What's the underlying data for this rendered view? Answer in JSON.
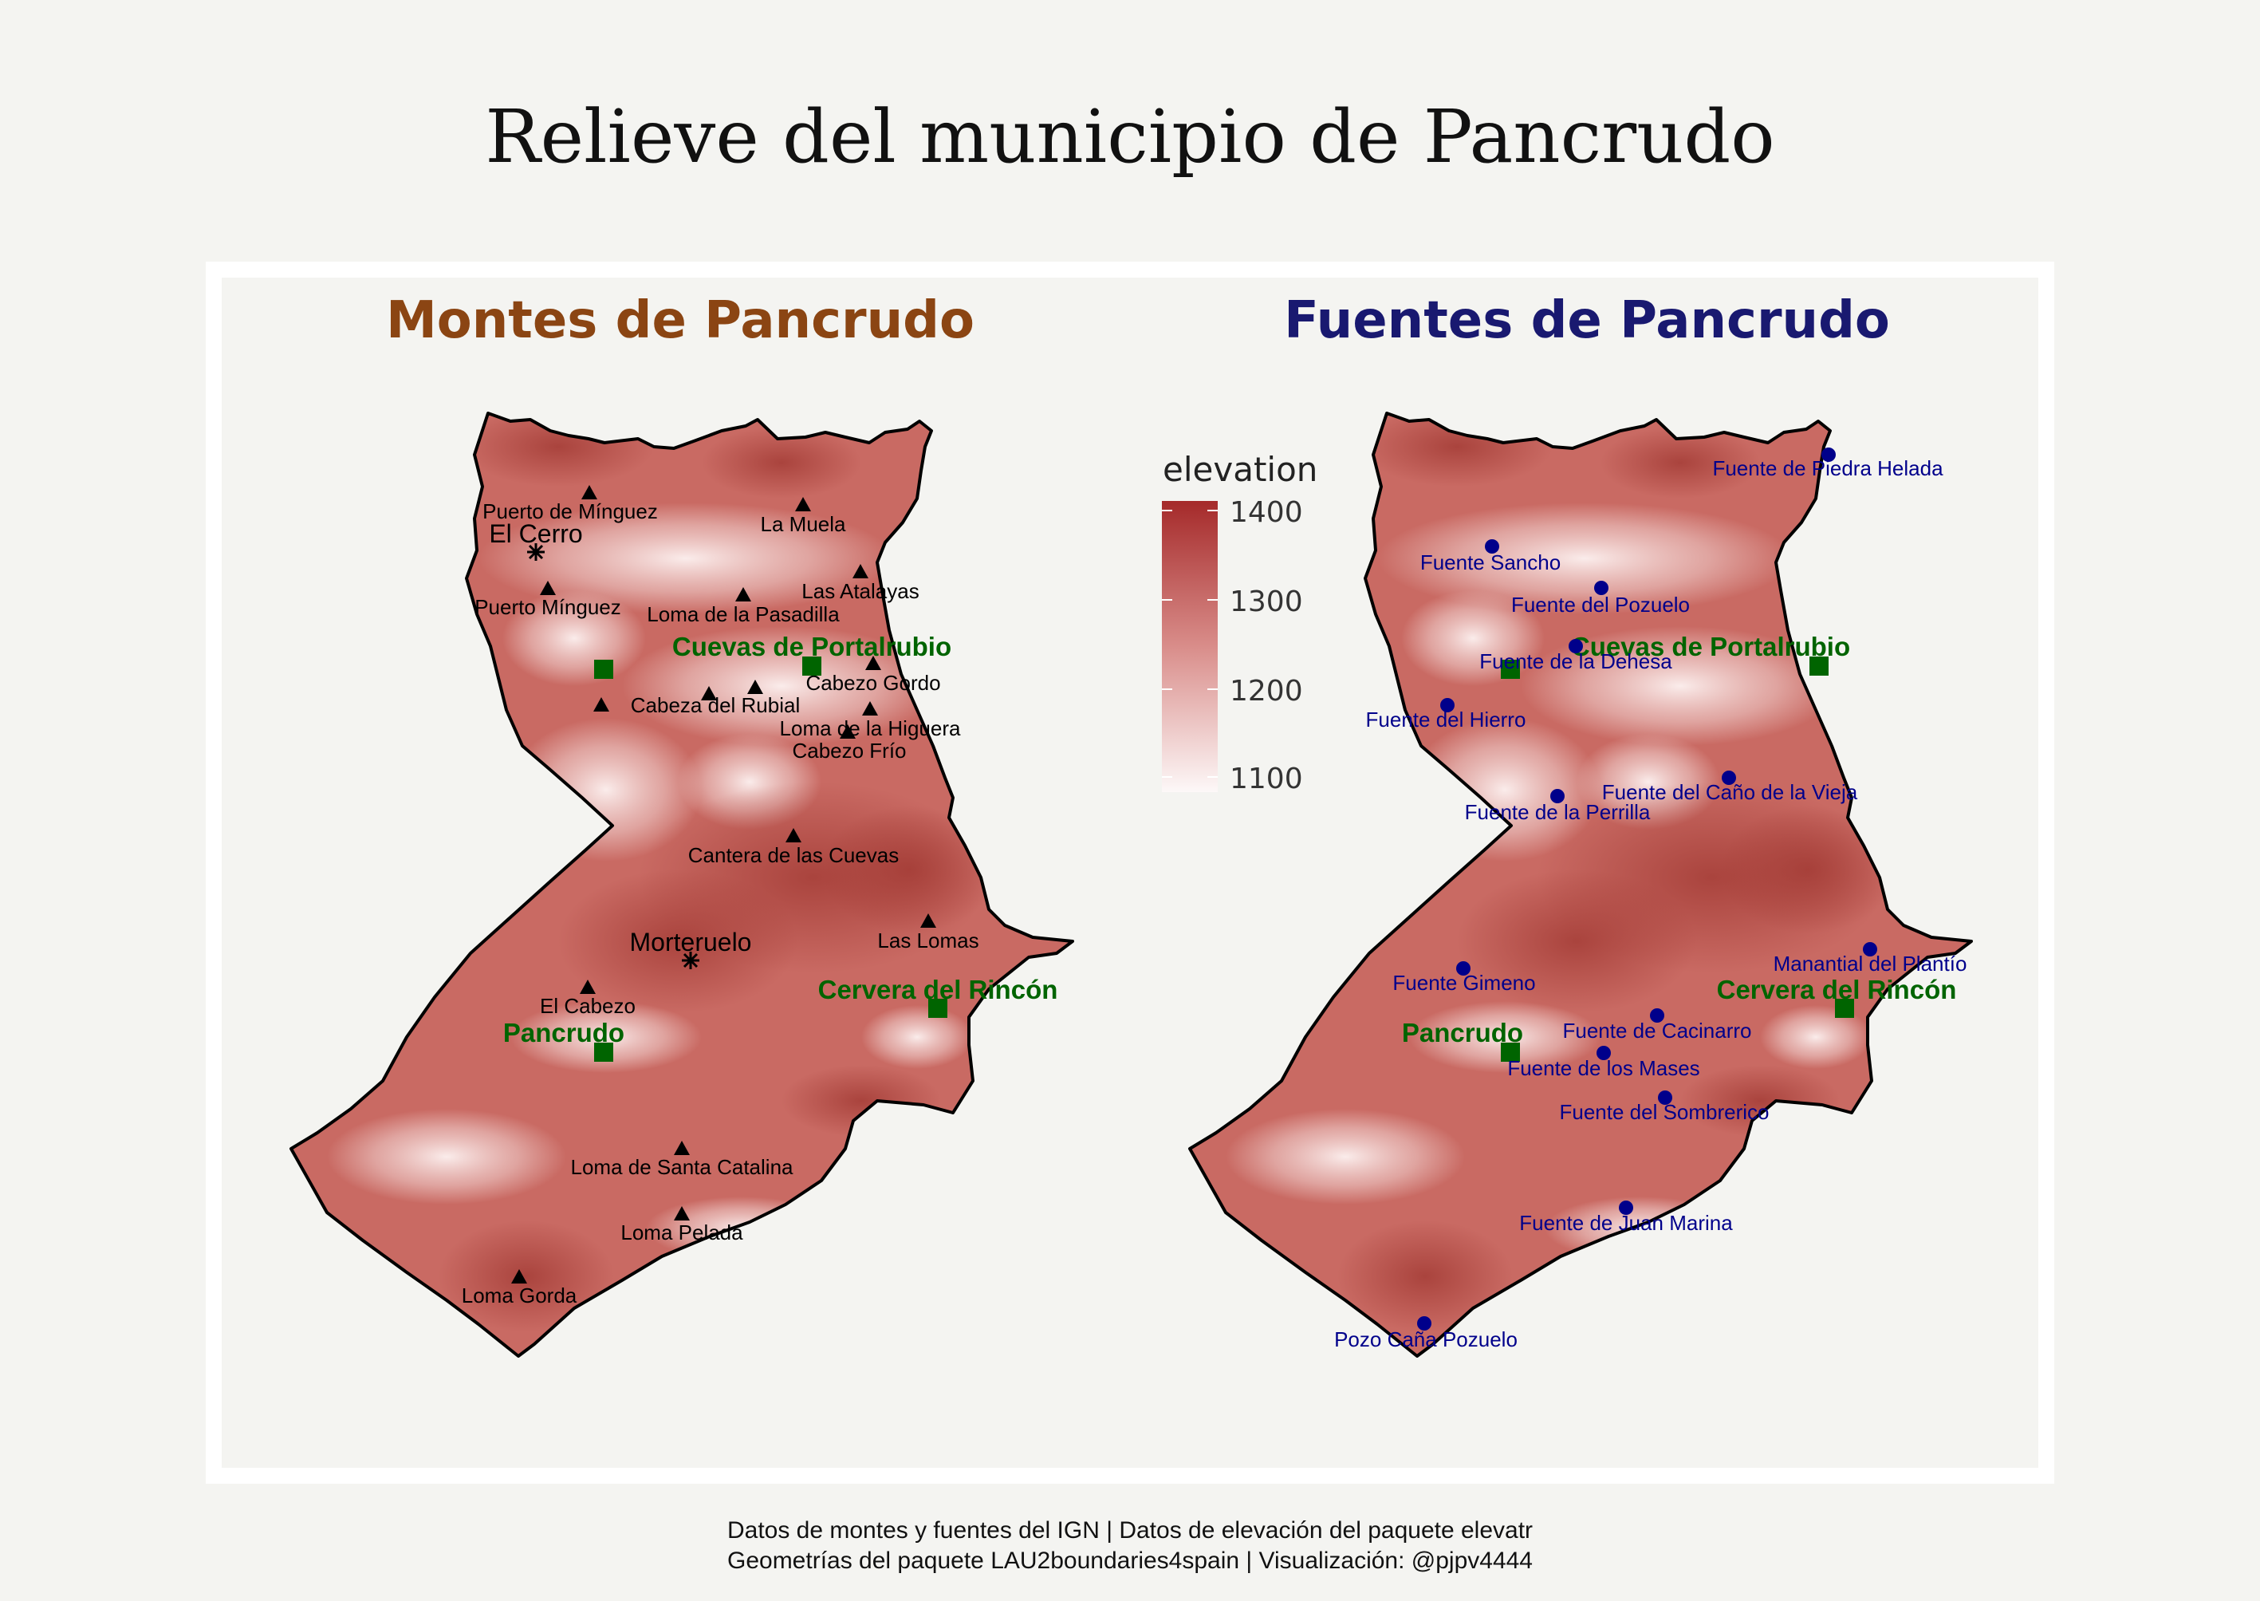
{
  "title": "Relieve del municipio de Pancrudo",
  "panels": {
    "left_title": "Montes de Pancrudo",
    "right_title": "Fuentes de Pancrudo"
  },
  "colors": {
    "left_title": "#8b4513",
    "right_title": "#191970",
    "town": "#006400",
    "spring": "#00008b",
    "elev_low": "#fbf3f3",
    "elev_high": "#a52a2a"
  },
  "legend": {
    "title": "elevation",
    "ticks": [
      "1400",
      "1300",
      "1200",
      "1100"
    ]
  },
  "towns": [
    "Cuevas de Portalrubio",
    "Cervera del Rincón",
    "Pancrudo"
  ],
  "peaks": [
    "Puerto de Mínguez",
    "La Muela",
    "El Cerro",
    "Puerto Mínguez",
    "Loma de la Pasadilla",
    "Las Atalayas",
    "Cabezo Gordo",
    "Cabeza del Rubial",
    "Loma de la Higuera",
    "Cabezo Frío",
    "Cantera de las Cuevas",
    "Morteruelo",
    "Las Lomas",
    "El Cabezo",
    "Loma de Santa Catalina",
    "Loma Pelada",
    "Loma Gorda"
  ],
  "springs": [
    "Fuente de Piedra Helada",
    "Fuente Sancho",
    "Fuente del Pozuelo",
    "Fuente de la Dehesa",
    "Fuente del Hierro",
    "Fuente del Caño de la Vieja",
    "Fuente de la Perrilla",
    "Manantial del Plantío",
    "Fuente Gimeno",
    "Fuente de Cacinarro",
    "Fuente de los Mases",
    "Fuente del Sombrerico",
    "Fuente de Juan Marina",
    "Pozo Caña Pozuelo"
  ],
  "caption": {
    "line1": "Datos de montes y fuentes del IGN | Datos de elevación del paquete elevatr",
    "line2": "Geometrías del paquete LAU2boundaries4spain | Visualización: @pjpv4444"
  }
}
